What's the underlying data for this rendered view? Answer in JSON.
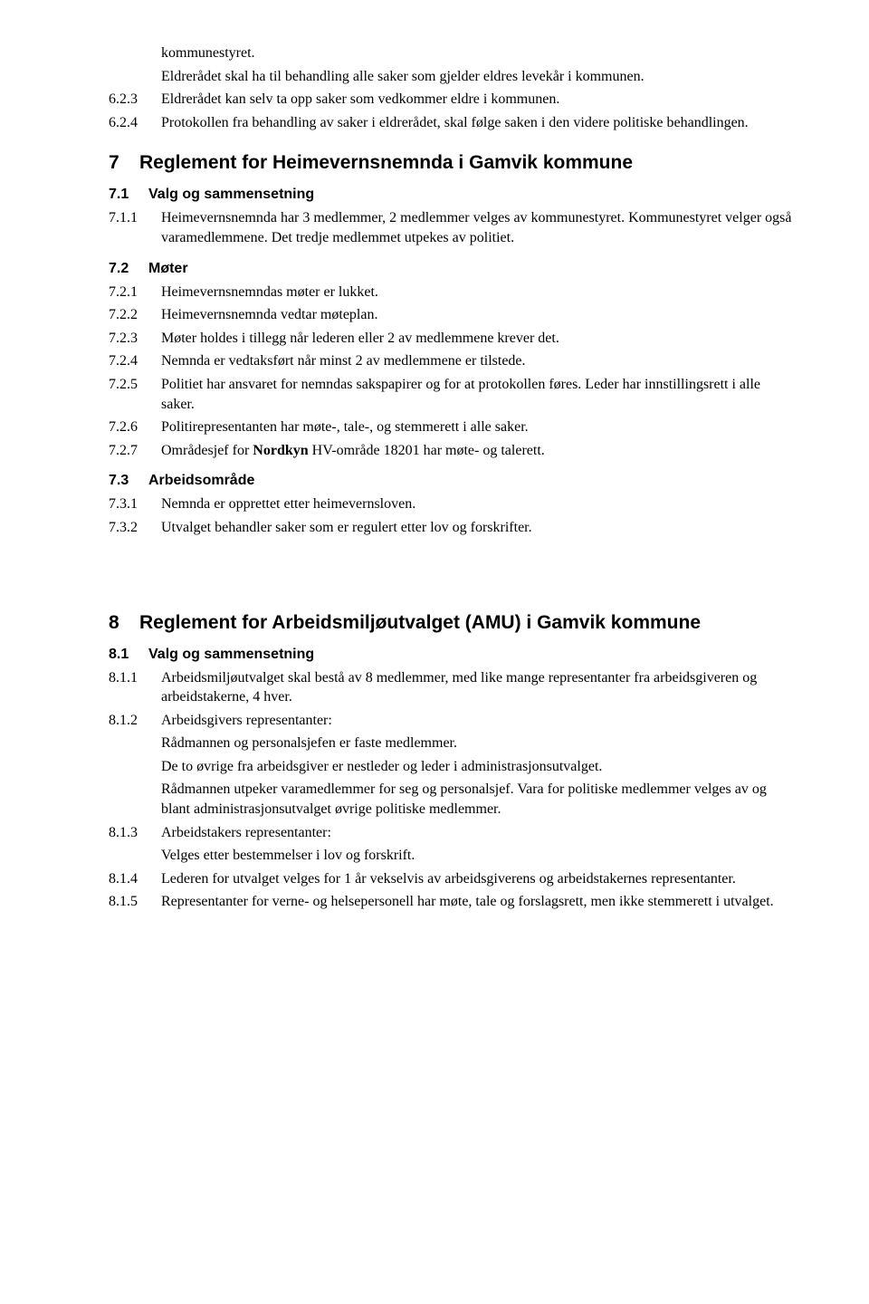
{
  "top": {
    "cont1": "kommunestyret.",
    "cont2": "Eldrerådet skal ha til behandling alle saker som gjelder eldres levekår i kommunen.",
    "i623_num": "6.2.3",
    "i623_text": "Eldrerådet kan selv ta opp saker som vedkommer eldre i kommunen.",
    "i624_num": "6.2.4",
    "i624_text": "Protokollen fra behandling av saker i eldrerådet, skal følge saken i den videre politiske behandlingen."
  },
  "sec7": {
    "num": "7",
    "title": "Reglement for Heimevernsnemnda i Gamvik kommune",
    "s71_num": "7.1",
    "s71_title": "Valg og sammensetning",
    "i711_num": "7.1.1",
    "i711_text": "Heimevernsnemnda har 3 medlemmer, 2 medlemmer velges av kommunestyret. Kommunestyret velger også varamedlemmene. Det tredje medlemmet utpekes av politiet.",
    "s72_num": "7.2",
    "s72_title": "Møter",
    "i721_num": "7.2.1",
    "i721_text": "Heimevernsnemndas møter er lukket.",
    "i722_num": "7.2.2",
    "i722_text": "Heimevernsnemnda vedtar møteplan.",
    "i723_num": "7.2.3",
    "i723_text": "Møter holdes i tillegg når lederen eller 2 av medlemmene krever det.",
    "i724_num": "7.2.4",
    "i724_text": "Nemnda er vedtaksført når minst 2 av medlemmene er tilstede.",
    "i725_num": "7.2.5",
    "i725_text": "Politiet har ansvaret for nemndas sakspapirer og for at protokollen føres. Leder har innstillingsrett i alle saker.",
    "i726_num": "7.2.6",
    "i726_text": "Politirepresentanten har møte-, tale-, og stemmerett i alle saker.",
    "i727_num": "7.2.7",
    "i727_text_before": "Områdesjef for ",
    "i727_text_bold": "Nordkyn",
    "i727_text_after": " HV-område 18201 har møte- og talerett.",
    "s73_num": "7.3",
    "s73_title": "Arbeidsområde",
    "i731_num": "7.3.1",
    "i731_text": "Nemnda er opprettet etter heimevernsloven.",
    "i732_num": "7.3.2",
    "i732_text": "Utvalget behandler saker som er regulert etter lov og forskrifter."
  },
  "sec8": {
    "num": "8",
    "title": "Reglement for Arbeidsmiljøutvalget (AMU) i Gamvik kommune",
    "s81_num": "8.1",
    "s81_title": "Valg og sammensetning",
    "i811_num": "8.1.1",
    "i811_text": "Arbeidsmiljøutvalget skal bestå av 8 medlemmer, med like mange representanter fra arbeidsgiveren og arbeidstakerne, 4 hver.",
    "i812_num": "8.1.2",
    "i812_text": "Arbeidsgivers representanter:",
    "i812_l1": "Rådmannen og personalsjefen er faste medlemmer.",
    "i812_l2": "De to øvrige fra arbeidsgiver er nestleder og leder i administrasjonsutvalget.",
    "i812_l3": "Rådmannen utpeker varamedlemmer for seg og personalsjef. Vara for politiske medlemmer velges av og blant administrasjonsutvalget øvrige politiske medlemmer.",
    "i813_num": "8.1.3",
    "i813_text": "Arbeidstakers representanter:",
    "i813_l1": "Velges etter bestemmelser i lov og forskrift.",
    "i814_num": "8.1.4",
    "i814_text": "Lederen for utvalget velges for 1 år vekselvis av arbeidsgiverens og arbeidstakernes representanter.",
    "i815_num": "8.1.5",
    "i815_text": "Representanter for verne- og helsepersonell har møte, tale og forslagsrett, men ikke stemmerett i utvalget."
  }
}
